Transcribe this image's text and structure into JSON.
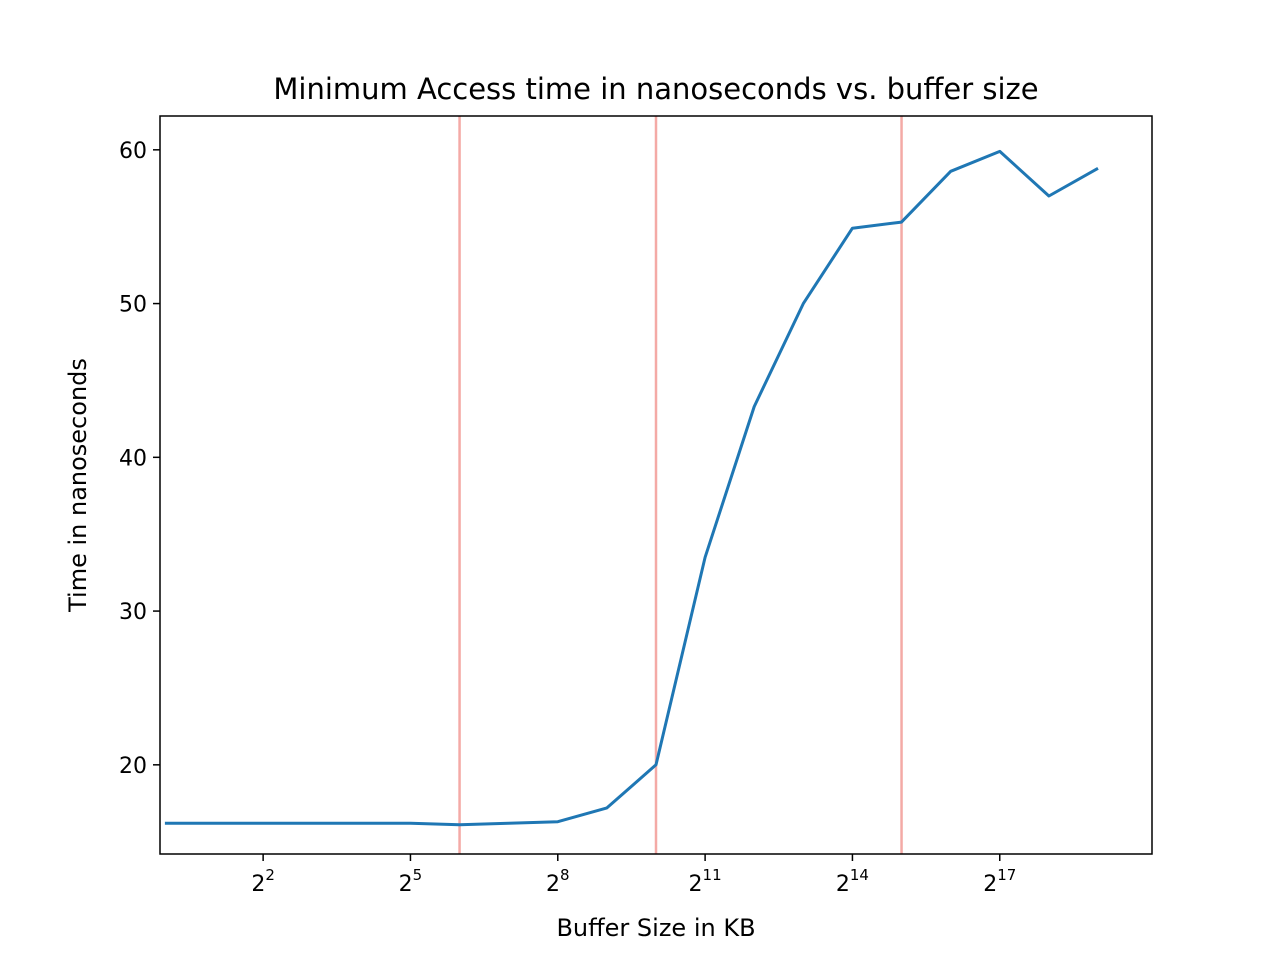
{
  "chart_data": {
    "type": "line",
    "title": "Minimum Access time in nanoseconds vs. buffer size",
    "xlabel": "Buffer Size in KB",
    "ylabel": "Time in nanoseconds",
    "x_scale": "log2",
    "x_exponent_range": [
      -0.1,
      20.1
    ],
    "ylim": [
      14.2,
      62.2
    ],
    "x_ticks": [
      {
        "base": "2",
        "exp": "2",
        "exponent": 2
      },
      {
        "base": "2",
        "exp": "5",
        "exponent": 5
      },
      {
        "base": "2",
        "exp": "8",
        "exponent": 8
      },
      {
        "base": "2",
        "exp": "11",
        "exponent": 11
      },
      {
        "base": "2",
        "exp": "14",
        "exponent": 14
      },
      {
        "base": "2",
        "exp": "17",
        "exponent": 17
      }
    ],
    "y_ticks": [
      {
        "label": "20",
        "value": 20
      },
      {
        "label": "30",
        "value": 30
      },
      {
        "label": "40",
        "value": 40
      },
      {
        "label": "50",
        "value": 50
      },
      {
        "label": "60",
        "value": 60
      }
    ],
    "grid": false,
    "series": [
      {
        "color": "#1f77b4",
        "x_exponents": [
          0,
          1,
          2,
          3,
          4,
          5,
          6,
          7,
          8,
          9,
          10,
          11,
          12,
          13,
          14,
          15,
          16,
          17,
          18,
          19
        ],
        "values": [
          16.2,
          16.2,
          16.2,
          16.2,
          16.2,
          16.2,
          16.1,
          16.2,
          16.3,
          17.2,
          20.0,
          33.5,
          43.3,
          50.0,
          54.9,
          55.3,
          58.6,
          59.9,
          57.0,
          58.8
        ]
      }
    ],
    "vlines": {
      "color": "#f4aaa6",
      "x_exponents": [
        6,
        10,
        15
      ]
    }
  }
}
